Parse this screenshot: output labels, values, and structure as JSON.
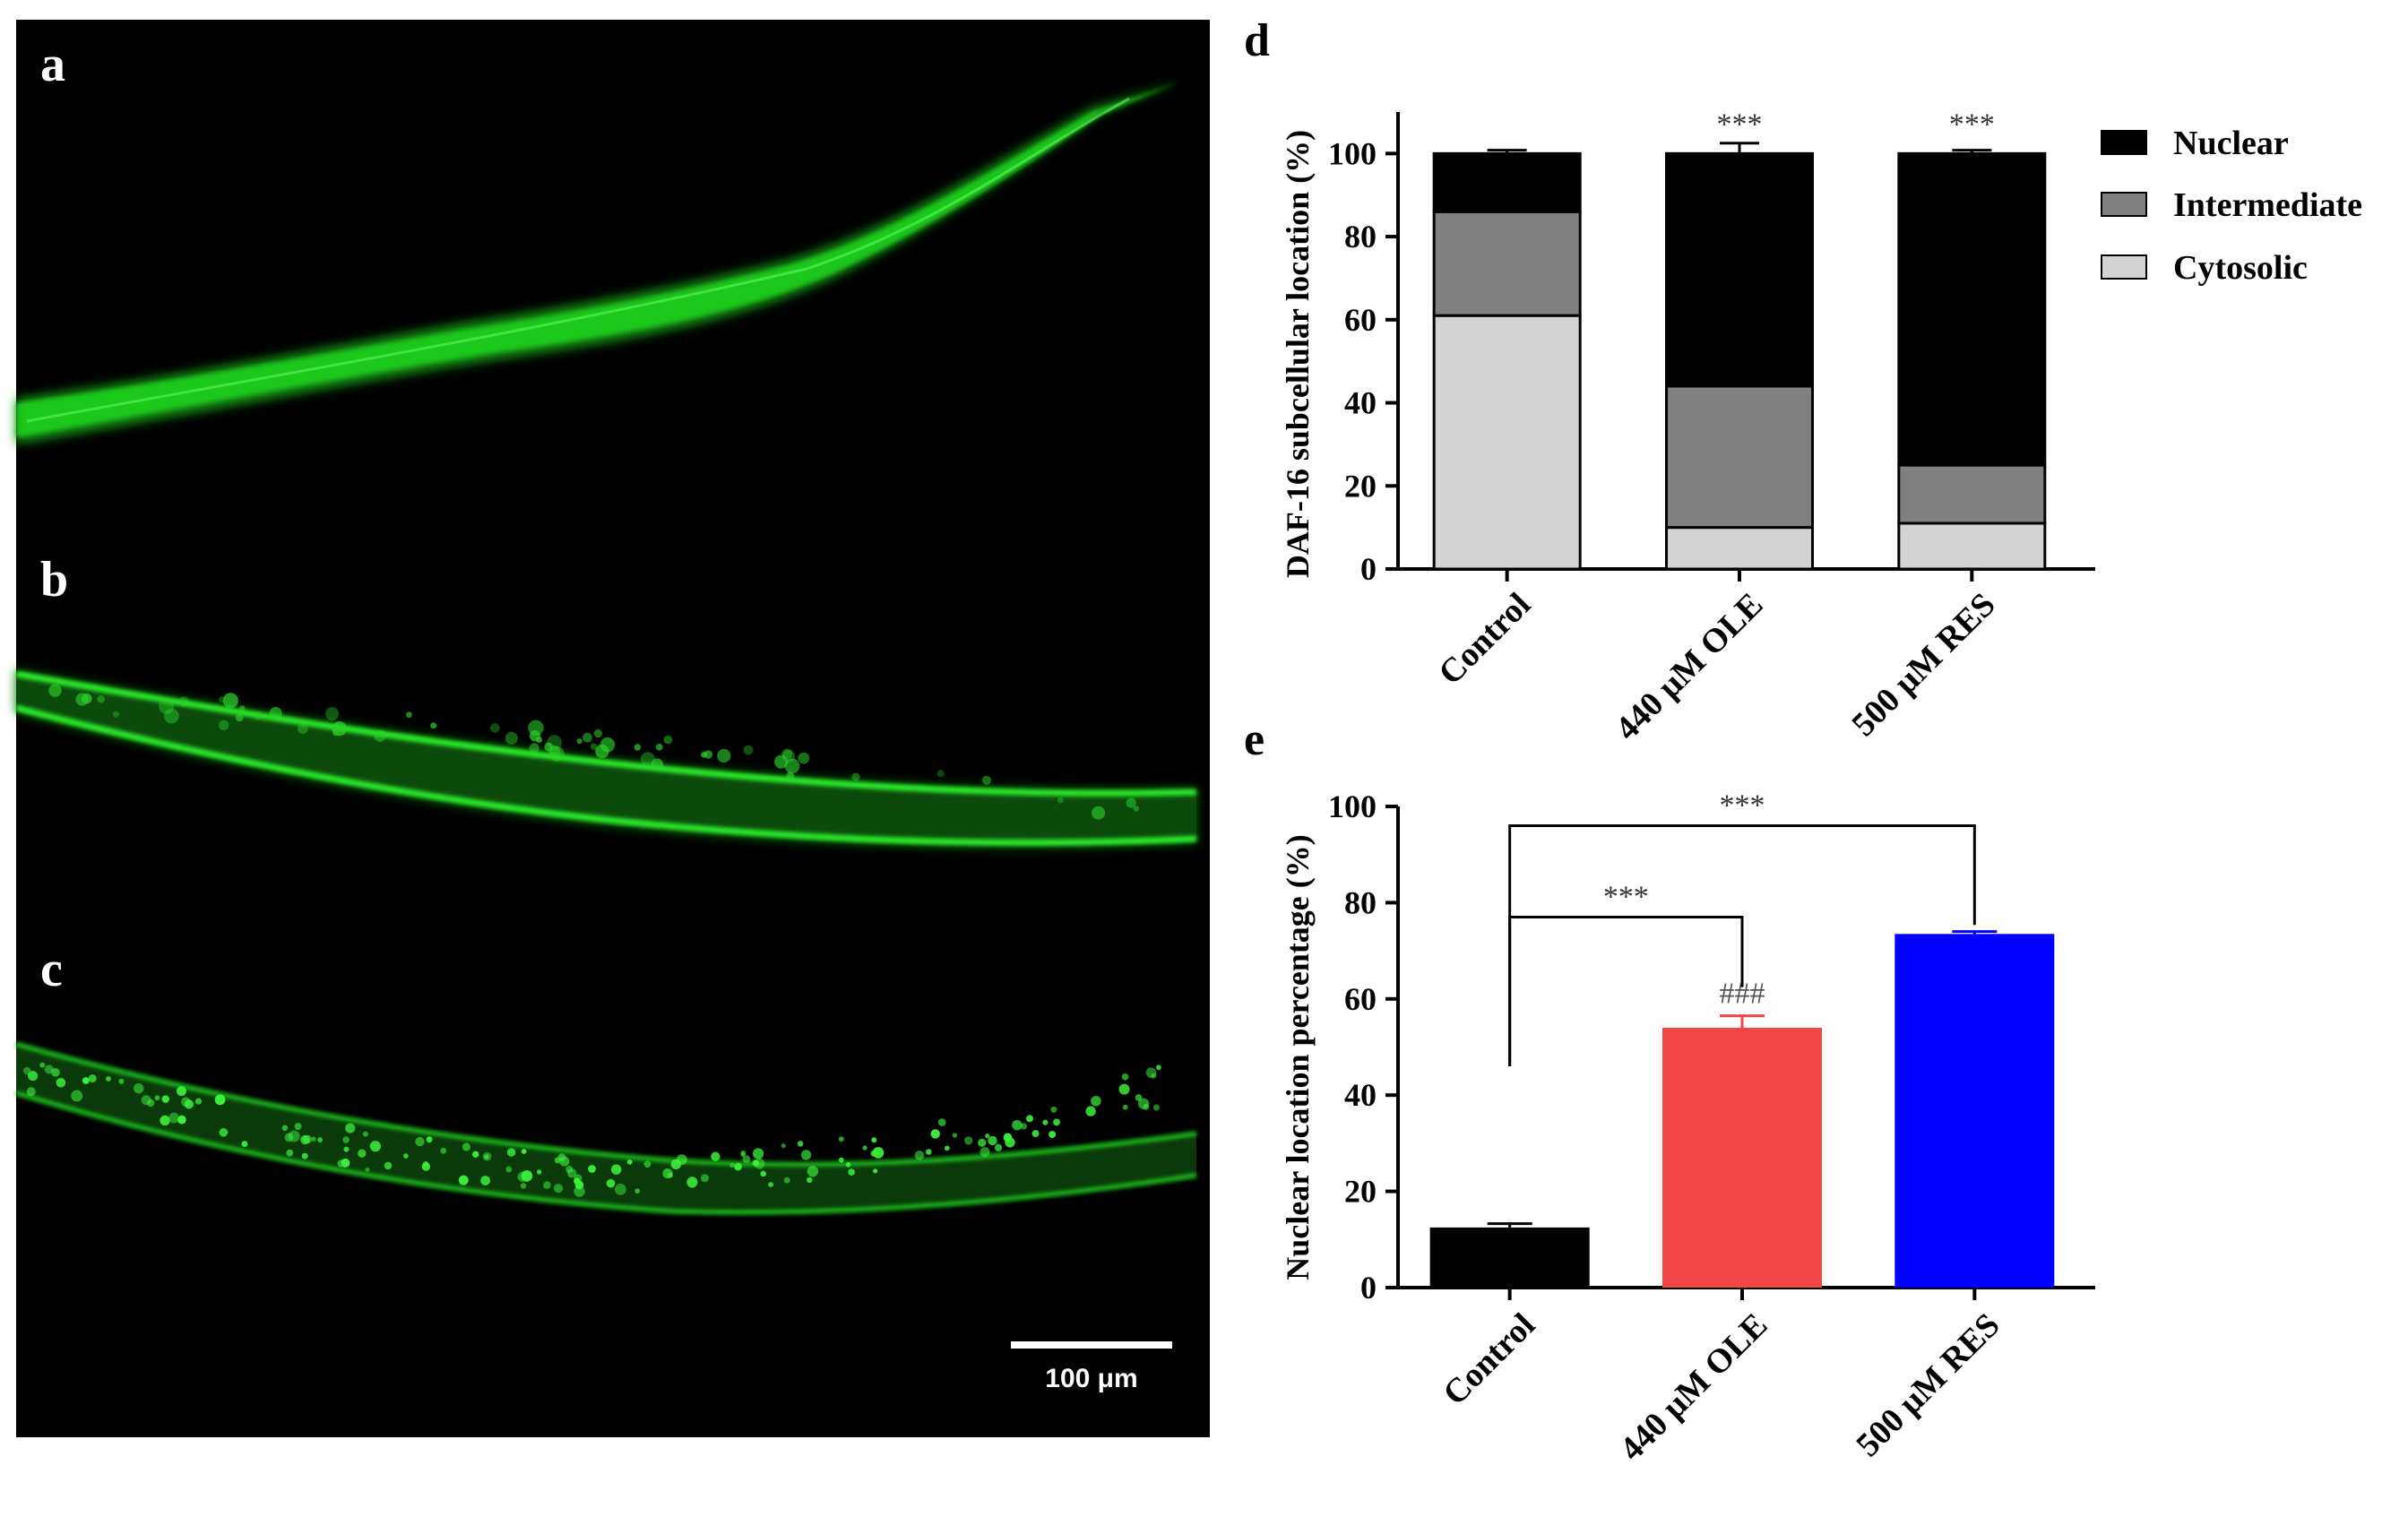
{
  "panels": {
    "micro": {
      "labels": [
        "a",
        "b",
        "c"
      ],
      "scale_bar": "100 μm",
      "colors": {
        "background": "#000000",
        "fluorescence": "#22dd22"
      }
    },
    "d": {
      "label": "d"
    },
    "e": {
      "label": "e"
    }
  },
  "chart_data": [
    {
      "type": "bar",
      "stacked": true,
      "panel": "d",
      "categories": [
        "Control",
        "440 μM OLE",
        "500 μM RES"
      ],
      "series": [
        {
          "name": "Cytosolic",
          "values": [
            61,
            10,
            11
          ],
          "errors": [
            0.8,
            1.0,
            1.8
          ],
          "color": "#d3d3d3"
        },
        {
          "name": "Intermediate",
          "values": [
            25,
            34,
            14
          ],
          "errors": [
            0.5,
            0.5,
            0.5
          ],
          "color": "#808080"
        },
        {
          "name": "Nuclear",
          "values": [
            14,
            56,
            75
          ],
          "errors": [
            0.8,
            2.5,
            0.8
          ],
          "color": "#000000"
        }
      ],
      "ylabel": "DAF-16 subcellular location (%)",
      "ylim": [
        0,
        110
      ],
      "yticks": [
        0,
        20,
        40,
        60,
        80,
        100
      ],
      "annotations": [
        "",
        "***",
        "***"
      ],
      "legend_position": "right"
    },
    {
      "type": "bar",
      "panel": "e",
      "categories": [
        "Control",
        "440 μM OLE",
        "500 μM RES"
      ],
      "values": [
        12.5,
        54,
        73.5
      ],
      "errors": [
        0.8,
        2.5,
        0.5
      ],
      "colors": [
        "#000000",
        "#f24646",
        "#0000ff"
      ],
      "ylabel": "Nuclear location percentage (%)",
      "ylim": [
        0,
        100
      ],
      "yticks": [
        0,
        20,
        40,
        60,
        80,
        100
      ],
      "bar_annotations": [
        "",
        "###",
        ""
      ],
      "comparisons": [
        {
          "from": "Control",
          "to": "440 μM OLE",
          "label": "***"
        },
        {
          "from": "Control",
          "to": "500 μM RES",
          "label": "***"
        }
      ]
    }
  ]
}
